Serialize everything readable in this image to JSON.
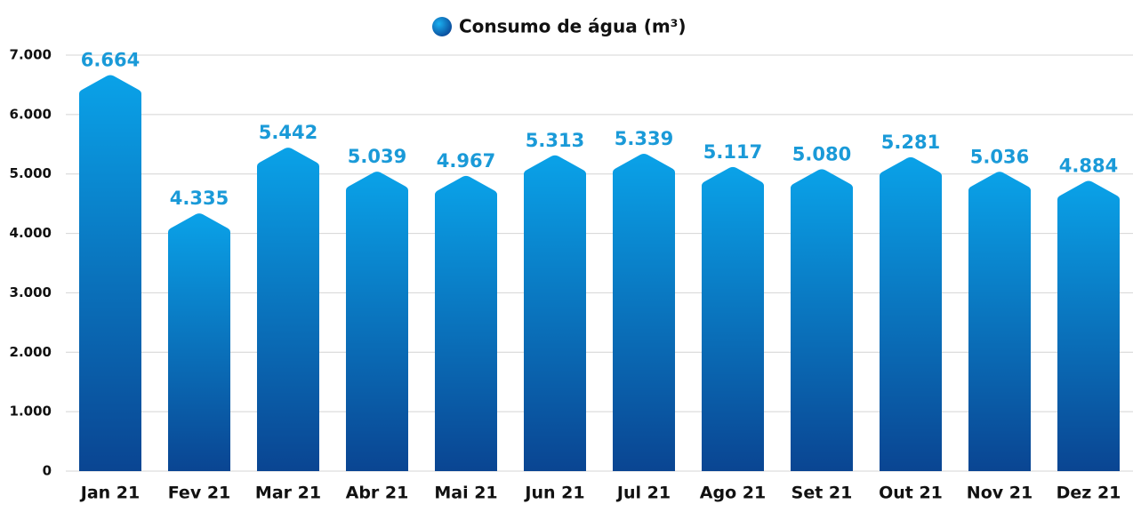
{
  "chart_data": {
    "type": "bar",
    "categories": [
      "Jan 21",
      "Fev 21",
      "Mar 21",
      "Abr 21",
      "Mai 21",
      "Jun 21",
      "Jul 21",
      "Ago 21",
      "Set 21",
      "Out 21",
      "Nov 21",
      "Dez 21"
    ],
    "series": [
      {
        "name": "Consumo de água (m³)",
        "color": "#0a8fd8",
        "values": [
          6664,
          4335,
          5442,
          5039,
          4967,
          5313,
          5339,
          5117,
          5080,
          5281,
          5036,
          4884
        ],
        "value_labels": [
          "6.664",
          "4.335",
          "5.442",
          "5.039",
          "4.967",
          "5.313",
          "5.339",
          "5.117",
          "5.080",
          "5.281",
          "5.036",
          "4.884"
        ]
      }
    ],
    "ylim": [
      0,
      7000
    ],
    "yticks": [
      0,
      {
        "value": 1000,
        "label": "1.000"
      },
      {
        "value": 2000,
        "label": "2.000"
      },
      {
        "value": 3000,
        "label": "3.000"
      },
      {
        "value": 4000,
        "label": "4.000"
      },
      {
        "value": 5000,
        "label": "5.000"
      },
      {
        "value": 6000,
        "label": "6.000"
      },
      {
        "value": 7000,
        "label": "7.000"
      }
    ],
    "grid": true,
    "legend": "top"
  }
}
